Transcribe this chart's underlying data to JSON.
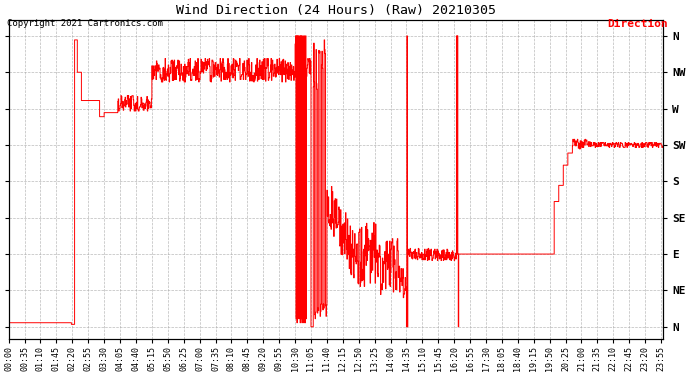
{
  "title": "Wind Direction (24 Hours) (Raw) 20210305",
  "copyright": "Copyright 2021 Cartronics.com",
  "legend_label": "Direction",
  "background_color": "#ffffff",
  "plot_bg_color": "#ffffff",
  "line_color": "#ff0000",
  "grid_color": "#aaaaaa",
  "ytick_labels": [
    "N",
    "NE",
    "E",
    "SE",
    "S",
    "SW",
    "W",
    "NW",
    "N"
  ],
  "ytick_values": [
    0,
    45,
    90,
    135,
    180,
    225,
    270,
    315,
    360
  ],
  "ylim": [
    -15,
    380
  ],
  "figsize": [
    6.9,
    3.75
  ],
  "dpi": 100,
  "xtick_step_minutes": 35,
  "total_minutes": 1440
}
